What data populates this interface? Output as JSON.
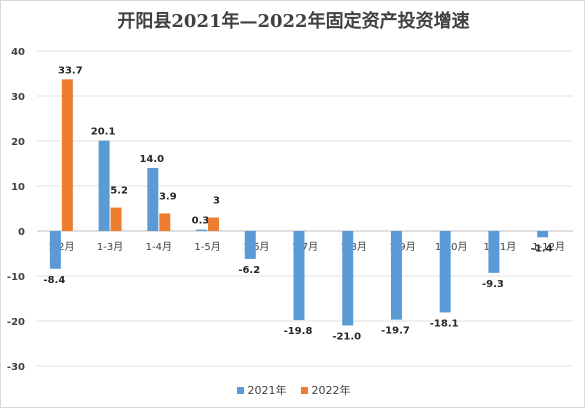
{
  "chart_data": {
    "type": "bar",
    "title": "开阳县2021年—2022年固定资产投资增速",
    "xlabel": "",
    "ylabel": "",
    "ylim": [
      -30,
      40
    ],
    "yticks": [
      40,
      30,
      20,
      10,
      0,
      -10,
      -20,
      -30
    ],
    "grid": true,
    "legend_position": "bottom",
    "categories": [
      "1-2月",
      "1-3月",
      "1-4月",
      "1-5月",
      "1-6月",
      "1-7月",
      "1-8月",
      "1-9月",
      "1-10月",
      "1-11月",
      "1-12月"
    ],
    "series": [
      {
        "name": "2021年",
        "color": "#5b9bd5",
        "values": [
          -8.4,
          20.1,
          14.0,
          0.3,
          -6.2,
          -19.8,
          -21.0,
          -19.7,
          -18.1,
          -9.3,
          -1.4
        ],
        "labels": [
          "-8.4",
          "20.1",
          "14.0",
          "0.3",
          "-6.2",
          "-19.8",
          "-21.0",
          "-19.7",
          "-18.1",
          "-9.3",
          "-1.4"
        ]
      },
      {
        "name": "2022年",
        "color": "#ed7d31",
        "values": [
          33.7,
          5.2,
          3.9,
          3,
          null,
          null,
          null,
          null,
          null,
          null,
          null
        ],
        "labels": [
          "33.7",
          "5.2",
          "3.9",
          "3",
          "",
          "",
          "",
          "",
          "",
          "",
          ""
        ]
      }
    ]
  }
}
